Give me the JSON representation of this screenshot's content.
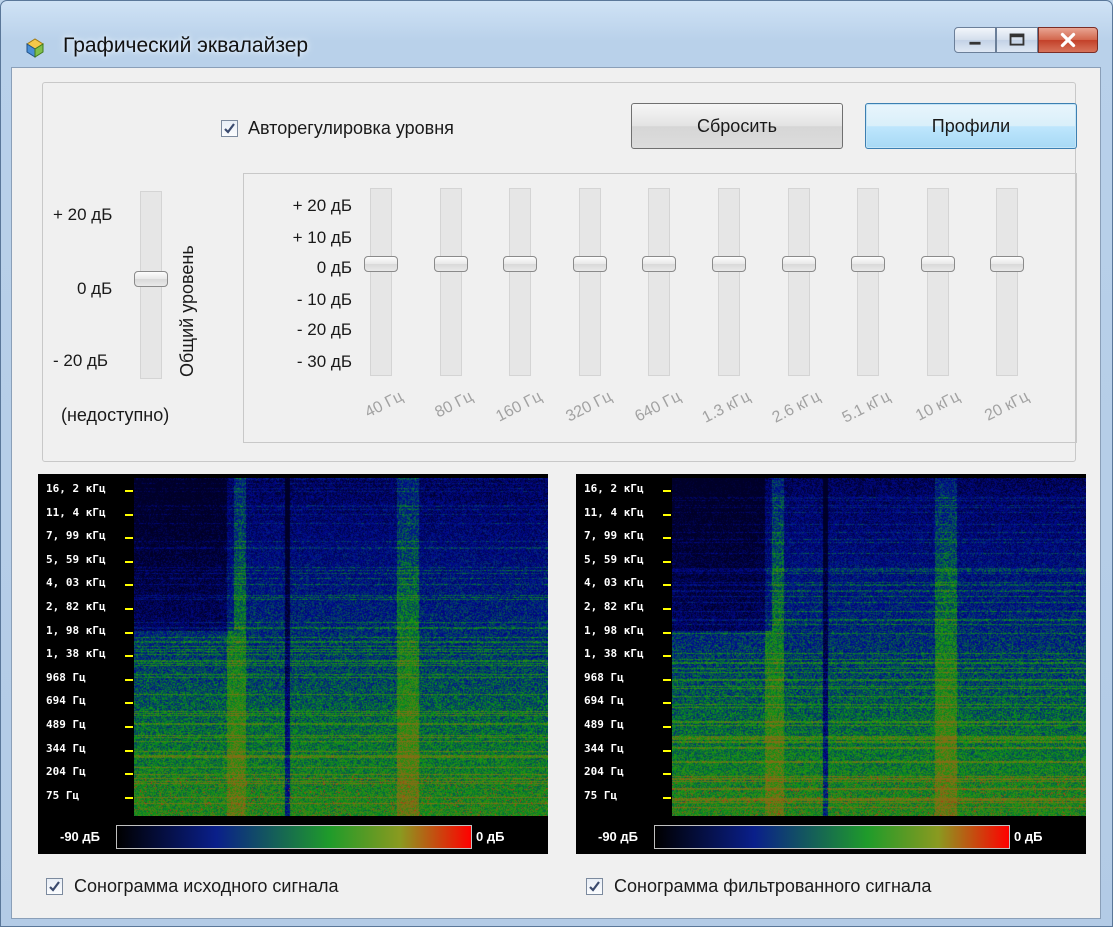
{
  "window": {
    "title": "Графический эквалайзер",
    "app_icon": "equalizer-app-icon",
    "controls": [
      "minimize-icon",
      "maximize-icon",
      "close-icon"
    ]
  },
  "top_controls": {
    "auto_level": {
      "label": "Авторегулировка уровня",
      "checked": true
    },
    "reset_button": "Сбросить",
    "profiles_button": "Профили"
  },
  "master": {
    "scale": [
      "+ 20 дБ",
      "0 дБ",
      "- 20 дБ"
    ],
    "title": "Общий уровень",
    "status": "(недоступно)",
    "value_db": 0
  },
  "bands": {
    "scale": [
      "+ 20 дБ",
      "+ 10 дБ",
      "0 дБ",
      "- 10 дБ",
      "- 20 дБ",
      "- 30 дБ"
    ],
    "items": [
      {
        "label": "40 Гц",
        "value_db": 0
      },
      {
        "label": "80 Гц",
        "value_db": 0
      },
      {
        "label": "160 Гц",
        "value_db": 0
      },
      {
        "label": "320 Гц",
        "value_db": 0
      },
      {
        "label": "640 Гц",
        "value_db": 0
      },
      {
        "label": "1.3 кГц",
        "value_db": 0
      },
      {
        "label": "2.6 кГц",
        "value_db": 0
      },
      {
        "label": "5.1 кГц",
        "value_db": 0
      },
      {
        "label": "10 кГц",
        "value_db": 0
      },
      {
        "label": "20 кГц",
        "value_db": 0
      }
    ]
  },
  "sonograms": {
    "freq_labels": [
      "16, 2 кГц",
      "11, 4 кГц",
      "7, 99 кГц",
      "5, 59 кГц",
      "4, 03 кГц",
      "2, 82 кГц",
      "1, 98 кГц",
      "1, 38 кГц",
      "968  Гц",
      "694  Гц",
      "489  Гц",
      "344  Гц",
      "204  Гц",
      "75  Гц"
    ],
    "scale_min": "-90 дБ",
    "scale_max": "0 дБ",
    "colors": {
      "low": "#000000",
      "mid_low": "#0a1f8a",
      "mid": "#1f9b2a",
      "mid_high": "#8a9a20",
      "high": "#ff0000"
    },
    "source": {
      "label": "Сонограмма исходного сигнала",
      "checked": true
    },
    "filtered": {
      "label": "Сонограмма фильтрованного сигнала",
      "checked": true
    }
  }
}
